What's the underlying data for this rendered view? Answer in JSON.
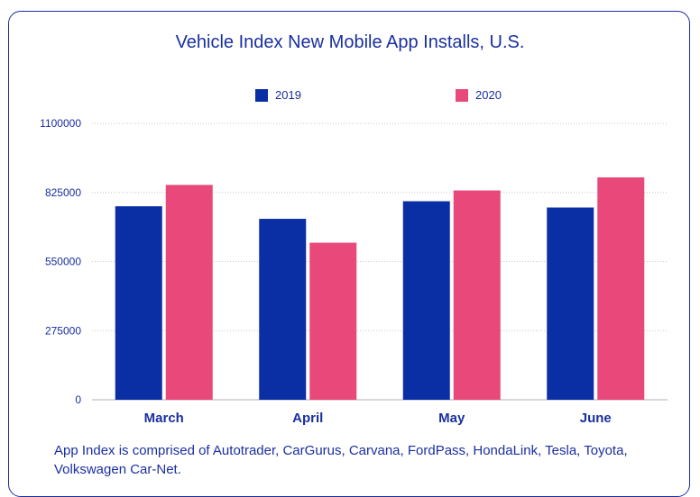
{
  "chart_data": {
    "type": "bar",
    "title": "Vehicle Index New Mobile App Installs, U.S.",
    "categories": [
      "March",
      "April",
      "May",
      "June"
    ],
    "series": [
      {
        "name": "2019",
        "color": "#0a2ea3",
        "values": [
          770000,
          720000,
          790000,
          765000
        ]
      },
      {
        "name": "2020",
        "color": "#e8487a",
        "values": [
          855000,
          625000,
          833000,
          885000
        ]
      }
    ],
    "y_ticks": [
      "0",
      "275000",
      "550000",
      "825000",
      "1100000"
    ],
    "ylim": [
      0,
      1100000
    ],
    "grid": true,
    "legend_position": "top-center"
  },
  "footnote": "App Index is comprised of Autotrader, CarGurus, Carvana, FordPass, HondaLink, Tesla, Toyota, Volkswagen Car-Net."
}
